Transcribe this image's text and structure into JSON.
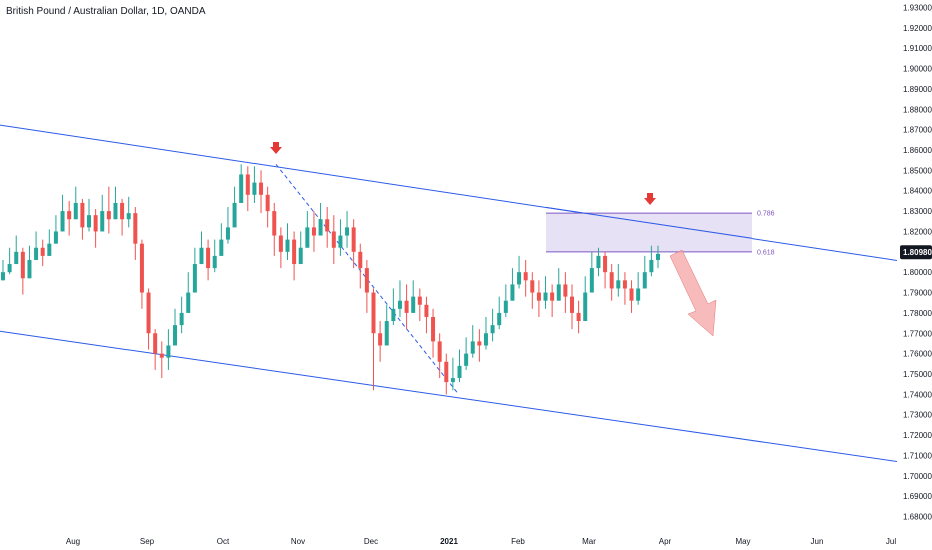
{
  "header": {
    "title": "British Pound / Australian Dollar, 1D, OANDA"
  },
  "colors": {
    "up": "#26a69a",
    "down": "#ef5350",
    "channel": "#2b5ae8",
    "fib_fill": "#e3dcf4",
    "fib_line": "#7e57c2",
    "arrow": "#e53935",
    "projection_arrow": "#f4a4a4",
    "price_badge": "#131722",
    "axis_text": "#131722"
  },
  "chart_data": {
    "type": "candlestick",
    "symbol": "British Pound / Australian Dollar",
    "timeframe": "1D",
    "source": "OANDA",
    "ylim": [
      1.675,
      1.935
    ],
    "grid": false,
    "y_ticks": [
      "1.68000",
      "1.69000",
      "1.70000",
      "1.71000",
      "1.72000",
      "1.73000",
      "1.74000",
      "1.75000",
      "1.76000",
      "1.77000",
      "1.78000",
      "1.79000",
      "1.80000",
      "1.81000",
      "1.82000",
      "1.83000",
      "1.84000",
      "1.85000",
      "1.86000",
      "1.87000",
      "1.88000",
      "1.89000",
      "1.90000",
      "1.91000",
      "1.92000",
      "1.93000"
    ],
    "x_ticks": [
      "Aug",
      "Sep",
      "Oct",
      "Nov",
      "Dec",
      "2021",
      "Feb",
      "Mar",
      "Apr",
      "May",
      "Jun",
      "Jul"
    ],
    "current_price": "1.80980",
    "anchor_points": [
      [
        1.8,
        1.806,
        1.796
      ],
      [
        1.804,
        1.812,
        1.799
      ],
      [
        1.81,
        1.818,
        1.805
      ],
      [
        1.797,
        1.812,
        1.789
      ],
      [
        1.806,
        1.813,
        1.8
      ],
      [
        1.812,
        1.82,
        1.806
      ],
      [
        1.808,
        1.816,
        1.803
      ],
      [
        1.814,
        1.821,
        1.808
      ],
      [
        1.82,
        1.828,
        1.814
      ],
      [
        1.83,
        1.838,
        1.822
      ],
      [
        1.826,
        1.835,
        1.818
      ],
      [
        1.834,
        1.842,
        1.828
      ],
      [
        1.822,
        1.836,
        1.816
      ],
      [
        1.828,
        1.836,
        1.82
      ],
      [
        1.82,
        1.831,
        1.812
      ],
      [
        1.83,
        1.838,
        1.822
      ],
      [
        1.826,
        1.842,
        1.819
      ],
      [
        1.834,
        1.842,
        1.826
      ],
      [
        1.826,
        1.836,
        1.818
      ],
      [
        1.829,
        1.837,
        1.822
      ],
      [
        1.814,
        1.832,
        1.806
      ],
      [
        1.79,
        1.816,
        1.782
      ],
      [
        1.77,
        1.792,
        1.762
      ],
      [
        1.76,
        1.772,
        1.752
      ],
      [
        1.758,
        1.766,
        1.748
      ],
      [
        1.764,
        1.772,
        1.752
      ],
      [
        1.774,
        1.782,
        1.764
      ],
      [
        1.78,
        1.788,
        1.77
      ],
      [
        1.79,
        1.8,
        1.782
      ],
      [
        1.804,
        1.812,
        1.794
      ],
      [
        1.812,
        1.82,
        1.804
      ],
      [
        1.802,
        1.816,
        1.796
      ],
      [
        1.808,
        1.816,
        1.8
      ],
      [
        1.816,
        1.824,
        1.808
      ],
      [
        1.822,
        1.832,
        1.814
      ],
      [
        1.834,
        1.842,
        1.824
      ],
      [
        1.848,
        1.853,
        1.836
      ],
      [
        1.838,
        1.852,
        1.83
      ],
      [
        1.844,
        1.852,
        1.834
      ],
      [
        1.838,
        1.85,
        1.829
      ],
      [
        1.83,
        1.842,
        1.822
      ],
      [
        1.818,
        1.834,
        1.808
      ],
      [
        1.81,
        1.822,
        1.802
      ],
      [
        1.816,
        1.824,
        1.806
      ],
      [
        1.804,
        1.82,
        1.796
      ],
      [
        1.812,
        1.82,
        1.804
      ],
      [
        1.822,
        1.83,
        1.813
      ],
      [
        1.818,
        1.83,
        1.81
      ],
      [
        1.826,
        1.834,
        1.818
      ],
      [
        1.82,
        1.832,
        1.812
      ],
      [
        1.812,
        1.828,
        1.804
      ],
      [
        1.818,
        1.826,
        1.808
      ],
      [
        1.822,
        1.83,
        1.812
      ],
      [
        1.81,
        1.826,
        1.802
      ],
      [
        1.802,
        1.814,
        1.792
      ],
      [
        1.79,
        1.806,
        1.78
      ],
      [
        1.77,
        1.792,
        1.742
      ],
      [
        1.764,
        1.776,
        1.756
      ],
      [
        1.776,
        1.784,
        1.766
      ],
      [
        1.782,
        1.792,
        1.774
      ],
      [
        1.786,
        1.796,
        1.778
      ],
      [
        1.78,
        1.794,
        1.772
      ],
      [
        1.788,
        1.796,
        1.78
      ],
      [
        1.784,
        1.792,
        1.776
      ],
      [
        1.778,
        1.788,
        1.77
      ],
      [
        1.766,
        1.782,
        1.758
      ],
      [
        1.756,
        1.77,
        1.748
      ],
      [
        1.746,
        1.76,
        1.74
      ],
      [
        1.748,
        1.758,
        1.742
      ],
      [
        1.754,
        1.762,
        1.746
      ],
      [
        1.76,
        1.768,
        1.752
      ],
      [
        1.766,
        1.774,
        1.758
      ],
      [
        1.764,
        1.772,
        1.756
      ],
      [
        1.77,
        1.778,
        1.762
      ],
      [
        1.774,
        1.782,
        1.766
      ],
      [
        1.78,
        1.788,
        1.772
      ],
      [
        1.786,
        1.794,
        1.778
      ],
      [
        1.794,
        1.802,
        1.786
      ],
      [
        1.8,
        1.808,
        1.792
      ],
      [
        1.796,
        1.806,
        1.788
      ],
      [
        1.79,
        1.8,
        1.782
      ],
      [
        1.786,
        1.796,
        1.778
      ],
      [
        1.79,
        1.798,
        1.782
      ],
      [
        1.786,
        1.794,
        1.778
      ],
      [
        1.794,
        1.802,
        1.786
      ],
      [
        1.788,
        1.8,
        1.78
      ],
      [
        1.78,
        1.794,
        1.772
      ],
      [
        1.776,
        1.786,
        1.77
      ],
      [
        1.79,
        1.798,
        1.782
      ],
      [
        1.802,
        1.81,
        1.794
      ],
      [
        1.808,
        1.812,
        1.798
      ],
      [
        1.8,
        1.81,
        1.792
      ],
      [
        1.792,
        1.804,
        1.786
      ],
      [
        1.796,
        1.804,
        1.788
      ],
      [
        1.792,
        1.8,
        1.784
      ],
      [
        1.786,
        1.796,
        1.78
      ],
      [
        1.792,
        1.8,
        1.784
      ],
      [
        1.8,
        1.808,
        1.794
      ],
      [
        1.806,
        1.813,
        1.798
      ],
      [
        1.809,
        1.813,
        1.802
      ]
    ],
    "channel_upper": [
      [
        "Jul-start",
        1.872
      ],
      [
        "Apr-end",
        1.806
      ]
    ],
    "channel_lower": [
      [
        "Jul-start",
        1.771
      ],
      [
        "Jul-end",
        1.707
      ]
    ],
    "diagonal_from": [
      1.853
    ],
    "diagonal_to": [
      1.741
    ],
    "fib_levels": [
      {
        "label": "0.786",
        "value": 1.829
      },
      {
        "label": "0.618",
        "value": 1.81
      }
    ],
    "annotations": [
      {
        "type": "down-arrow",
        "at": "Oct-high"
      },
      {
        "type": "down-arrow",
        "at": "Mar-end"
      },
      {
        "type": "projection-arrow",
        "direction": "down"
      }
    ]
  }
}
